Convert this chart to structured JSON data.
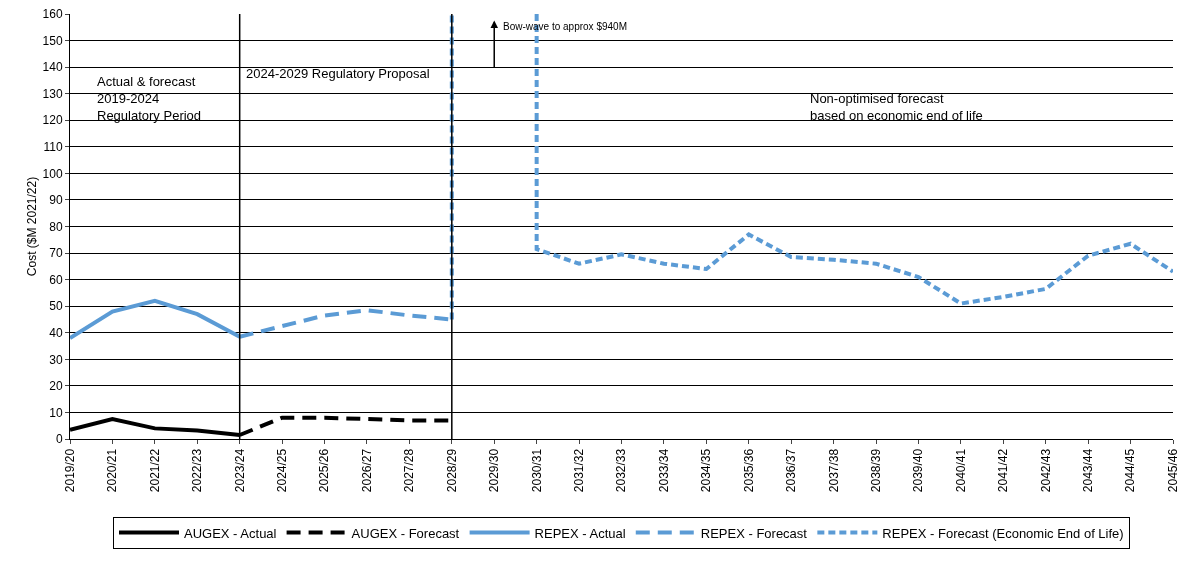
{
  "chart_data": {
    "type": "line",
    "ylabel": "Cost ($M 2021/22)",
    "categories": [
      "2019/20",
      "2020/21",
      "2021/22",
      "2022/23",
      "2023/24",
      "2024/25",
      "2025/26",
      "2026/27",
      "2027/28",
      "2028/29",
      "2029/30",
      "2030/31",
      "2031/32",
      "2032/33",
      "2033/34",
      "2034/35",
      "2035/36",
      "2036/37",
      "2037/38",
      "2038/39",
      "2039/40",
      "2040/41",
      "2041/42",
      "2042/43",
      "2043/44",
      "2044/45",
      "2045/46"
    ],
    "series": [
      {
        "name": "AUGEX - Actual",
        "color": "#000000",
        "line_style": "solid",
        "values": [
          3.5,
          7.5,
          4,
          3.2,
          1.5,
          null,
          null,
          null,
          null,
          null,
          null,
          null,
          null,
          null,
          null,
          null,
          null,
          null,
          null,
          null,
          null,
          null,
          null,
          null,
          null,
          null,
          null
        ]
      },
      {
        "name": "AUGEX - Forecast",
        "color": "#000000",
        "line_style": "dashed",
        "values": [
          null,
          null,
          null,
          null,
          1.5,
          8,
          8,
          7.5,
          7,
          7,
          null,
          null,
          null,
          null,
          null,
          null,
          null,
          null,
          null,
          null,
          null,
          null,
          null,
          null,
          null,
          null,
          null
        ]
      },
      {
        "name": "REPEX - Actual",
        "color": "#5b9bd5",
        "line_style": "solid",
        "values": [
          38,
          48,
          52,
          47,
          38.5,
          null,
          null,
          null,
          null,
          null,
          null,
          null,
          null,
          null,
          null,
          null,
          null,
          null,
          null,
          null,
          null,
          null,
          null,
          null,
          null,
          null,
          null
        ]
      },
      {
        "name": "REPEX - Forecast",
        "color": "#5b9bd5",
        "line_style": "dashed",
        "values": [
          null,
          null,
          null,
          null,
          38.5,
          42.5,
          46.5,
          48.5,
          46.5,
          45,
          null,
          null,
          null,
          null,
          null,
          null,
          null,
          null,
          null,
          null,
          null,
          null,
          null,
          null,
          null,
          null,
          null
        ]
      },
      {
        "name": "REPEX - Forecast (Economic End of Life)",
        "color": "#5b9bd5",
        "line_style": "dotted",
        "x": [
          "2028/29",
          "2028/29",
          "2029/30",
          "2030/31",
          "2030/31",
          "2031/32",
          "2032/33",
          "2033/34",
          "2034/35",
          "2035/36",
          "2036/37",
          "2037/38",
          "2038/39",
          "2039/40",
          "2040/41",
          "2041/42",
          "2042/43",
          "2043/44",
          "2044/45",
          "2045/46"
        ],
        "values": [
          45,
          160,
          null,
          160,
          71.5,
          66,
          69.5,
          66,
          64,
          77,
          68.5,
          67.5,
          66,
          61,
          51,
          53.5,
          56.5,
          69,
          73.5,
          63
        ]
      }
    ],
    "ylim": [
      0,
      160
    ],
    "yticks": [
      0,
      10,
      20,
      30,
      40,
      50,
      60,
      70,
      80,
      90,
      100,
      110,
      120,
      130,
      140,
      150,
      160
    ],
    "grid": "y",
    "legend": "bottom",
    "marker": "none",
    "ref_lines": [
      {
        "axis": "x",
        "value": "2023/24",
        "color": "#000000"
      },
      {
        "axis": "x",
        "value": "2028/29",
        "color": "#000000"
      }
    ],
    "annotations": [
      "Actual & forecast\n2019-2024\nRegulatory Period",
      "2024-2029 Regulatory Proposal",
      "Non-optimised forecast\nbased on economic end of life",
      "Bow-wave to approx $940M"
    ]
  }
}
